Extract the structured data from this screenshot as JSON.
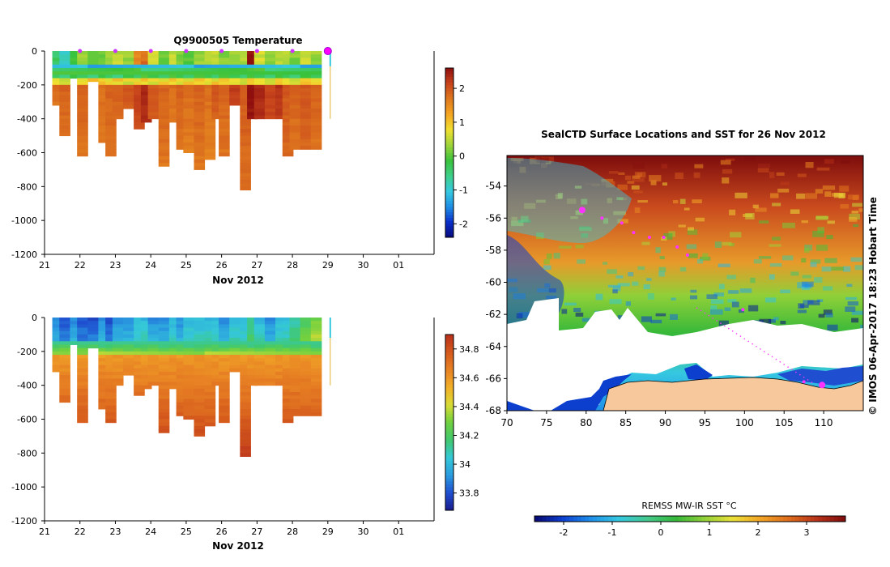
{
  "colors": {
    "temp_scale": [
      "#08087a",
      "#0a2fc9",
      "#1f8fe6",
      "#35c8e0",
      "#3fd08a",
      "#39c23c",
      "#9ed43a",
      "#f0e030",
      "#f5a623",
      "#e07a1e",
      "#c8451c",
      "#8f0f0f"
    ],
    "salt_scale": [
      "#1a1a8a",
      "#1f4fd0",
      "#2a9be0",
      "#35c8d8",
      "#40c870",
      "#6ed040",
      "#d8dc35",
      "#f2b028",
      "#e88224",
      "#d55a1c",
      "#b8301a"
    ],
    "sst_scale": [
      "#07076e",
      "#0d3fcf",
      "#1f90ea",
      "#36c8e0",
      "#44c98c",
      "#35b83a",
      "#8fd038",
      "#ece13a",
      "#f2a426",
      "#de6c1c",
      "#b7321a",
      "#7d0c0c"
    ],
    "ice": "#ffffff",
    "land": "#f7c89b",
    "track": "#ff33ff"
  },
  "chart_data": [
    {
      "type": "heatmap",
      "title": "Q9900505  Temperature",
      "xlabel": "Nov 2012",
      "ylabel": "",
      "x_ticks": [
        "21",
        "22",
        "23",
        "24",
        "25",
        "26",
        "27",
        "28",
        "29",
        "30",
        "01"
      ],
      "y_ticks": [
        "0",
        "-200",
        "-400",
        "-600",
        "-800",
        "-1000",
        "-1200"
      ],
      "xlim": [
        21,
        32
      ],
      "ylim": [
        -1200,
        0
      ],
      "colorbar_ticks": [
        "-2",
        "-1",
        "0",
        "1",
        "2"
      ],
      "colorbar_range": [
        -2.4,
        2.6
      ],
      "profile_markers_day": [
        22.0,
        23.0,
        24.0,
        25.0,
        26.0,
        27.0,
        28.0
      ],
      "current_marker_day": 29.0,
      "profiles": [
        {
          "day": 21.3,
          "max_depth": 310
        },
        {
          "day": 21.5,
          "max_depth": 490
        },
        {
          "day": 21.8,
          "max_depth": 160
        },
        {
          "day": 22.0,
          "max_depth": 620
        },
        {
          "day": 22.3,
          "max_depth": 170
        },
        {
          "day": 22.6,
          "max_depth": 540
        },
        {
          "day": 22.8,
          "max_depth": 610
        },
        {
          "day": 23.0,
          "max_depth": 400
        },
        {
          "day": 23.3,
          "max_depth": 340
        },
        {
          "day": 23.6,
          "max_depth": 460
        },
        {
          "day": 23.8,
          "max_depth": 410
        },
        {
          "day": 24.0,
          "max_depth": 400
        },
        {
          "day": 24.3,
          "max_depth": 680
        },
        {
          "day": 24.6,
          "max_depth": 420
        },
        {
          "day": 24.8,
          "max_depth": 570
        },
        {
          "day": 25.0,
          "max_depth": 590
        },
        {
          "day": 25.3,
          "max_depth": 700
        },
        {
          "day": 25.6,
          "max_depth": 640
        },
        {
          "day": 25.8,
          "max_depth": 400
        },
        {
          "day": 26.0,
          "max_depth": 620
        },
        {
          "day": 26.3,
          "max_depth": 310
        },
        {
          "day": 26.6,
          "max_depth": 810
        },
        {
          "day": 26.8,
          "max_depth": 400
        },
        {
          "day": 27.0,
          "max_depth": 400
        },
        {
          "day": 27.3,
          "max_depth": 400
        },
        {
          "day": 27.6,
          "max_depth": 400
        },
        {
          "day": 27.8,
          "max_depth": 610
        },
        {
          "day": 28.0,
          "max_depth": 580
        },
        {
          "day": 28.3,
          "max_depth": 580
        },
        {
          "day": 28.6,
          "max_depth": 580
        }
      ],
      "surface_temps": [
        -0.4,
        -0.8,
        -0.2,
        0.3,
        0.2,
        0.1,
        0.4,
        0.5,
        0.3,
        1.6,
        1.8,
        0.6,
        0.1,
        0.5,
        0.2,
        0.0,
        0.3,
        0.4,
        0.6,
        0.2,
        0.3,
        0.4,
        2.6,
        0.6,
        0.3,
        0.5,
        0.4,
        0.2,
        0.6,
        0.3
      ],
      "deep_temps": [
        1.8,
        1.9,
        1.8,
        1.9,
        1.9,
        1.8,
        1.9,
        1.9,
        2.0,
        2.2,
        2.4,
        2.0,
        1.9,
        1.8,
        1.9,
        1.8,
        1.9,
        1.8,
        2.0,
        1.9,
        2.2,
        2.0,
        2.6,
        2.4,
        2.2,
        2.3,
        2.0,
        1.9,
        2.0,
        1.9
      ]
    },
    {
      "type": "heatmap",
      "title": "",
      "xlabel": "Nov 2012",
      "ylabel": "",
      "x_ticks": [
        "21",
        "22",
        "23",
        "24",
        "25",
        "26",
        "27",
        "28",
        "29",
        "30",
        "01"
      ],
      "y_ticks": [
        "0",
        "-200",
        "-400",
        "-600",
        "-800",
        "-1000",
        "-1200"
      ],
      "xlim": [
        21,
        32
      ],
      "ylim": [
        -1200,
        0
      ],
      "colorbar_ticks": [
        "33.8",
        "34",
        "34.2",
        "34.4",
        "34.6",
        "34.8"
      ],
      "colorbar_range": [
        33.68,
        34.9
      ],
      "surface_salinity": [
        33.9,
        33.8,
        33.9,
        33.8,
        33.8,
        33.9,
        33.8,
        33.9,
        33.9,
        34.0,
        34.0,
        33.9,
        33.9,
        34.0,
        33.9,
        34.0,
        34.0,
        34.0,
        34.0,
        33.9,
        34.0,
        34.0,
        34.1,
        34.0,
        33.9,
        34.0,
        34.0,
        34.1,
        34.2,
        34.3
      ],
      "deep_salinity": 34.6
    },
    {
      "type": "heatmap",
      "title": "SealCTD Surface Locations and SST for 26 Nov 2012",
      "xlabel": "",
      "ylabel": "",
      "x_ticks": [
        "70",
        "75",
        "80",
        "85",
        "90",
        "95",
        "100",
        "105",
        "110"
      ],
      "y_ticks": [
        "-54",
        "-56",
        "-58",
        "-60",
        "-62",
        "-64",
        "-66",
        "-68"
      ],
      "xlim": [
        70,
        115
      ],
      "ylim": [
        -68,
        -52.1
      ],
      "colorbar_label": "REMSS MW-IR SST °C",
      "colorbar_ticks": [
        "-2",
        "-1",
        "0",
        "1",
        "2",
        "3"
      ],
      "colorbar_range": [
        -2.6,
        3.8
      ],
      "side_label": "© IMOS 06-Apr-2017 18:23 Hobart Time",
      "track_points": [
        {
          "lon": 79.5,
          "lat": -55.5
        },
        {
          "lon": 82.0,
          "lat": -56.0
        },
        {
          "lon": 84.5,
          "lat": -56.3
        },
        {
          "lon": 86.0,
          "lat": -56.9
        },
        {
          "lon": 88.0,
          "lat": -57.2
        },
        {
          "lon": 89.8,
          "lat": -57.2
        },
        {
          "lon": 91.5,
          "lat": -57.8
        },
        {
          "lon": 92.8,
          "lat": -58.3
        },
        {
          "lon": 99.8,
          "lat": -61.7
        },
        {
          "lon": 107.5,
          "lat": -66.2
        },
        {
          "lon": 109.8,
          "lat": -66.4
        }
      ]
    }
  ]
}
